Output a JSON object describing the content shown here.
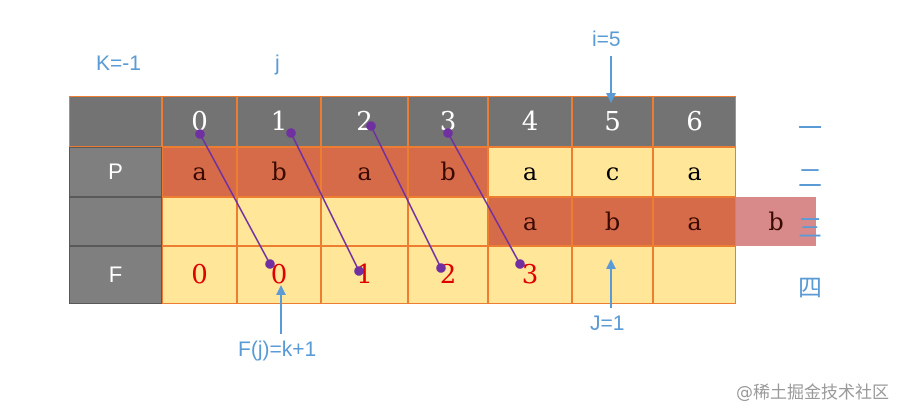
{
  "labels": {
    "k": "K=-1",
    "j": "j",
    "i": "i=5",
    "J": "J=1",
    "formula": "F(j)=k+1"
  },
  "table": {
    "row_labels": [
      "",
      "P",
      "",
      "F"
    ],
    "indices": [
      "0",
      "1",
      "2",
      "3",
      "4",
      "5",
      "6"
    ],
    "P": [
      "a",
      "b",
      "a",
      "b",
      "a",
      "c",
      "a"
    ],
    "shifted": [
      "a",
      "b",
      "a",
      "b"
    ],
    "F": [
      "0",
      "0",
      "1",
      "2",
      "3",
      "",
      ""
    ]
  },
  "row_markers": [
    "一",
    "二",
    "三",
    "四"
  ],
  "watermark": "@稀土掘金技术社区",
  "colors": {
    "header": "#737373",
    "highlight": "#d66b4a",
    "cell": "#ffe699",
    "arrow_blue": "#5b9bd5",
    "link_purple": "#7030a0",
    "f_value": "#e00000"
  }
}
